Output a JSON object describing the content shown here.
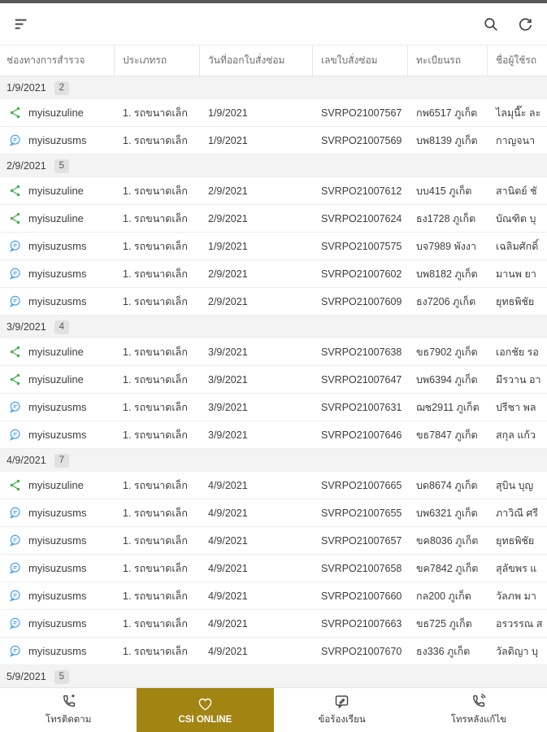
{
  "table": {
    "headers": [
      "ช่องทางการสำรวจ",
      "ประเภทรถ",
      "วันที่ออกใบสั่งซ่อม",
      "เลขใบสั่งซ่อม",
      "ทะเบียนรถ",
      "ชื่อผู้ใช้รถ"
    ],
    "groups": [
      {
        "date": "1/9/2021",
        "count": "2",
        "rows": [
          {
            "channel": "myisuzuline",
            "channel_type": "line",
            "vehicle_type": "1. รถขนาดเล็ก",
            "order_date": "1/9/2021",
            "order_no": "SVRPO21007567",
            "plate": "กพ6517 ภูเก็ต",
            "customer": "ไลมุนี๊ะ ละ"
          },
          {
            "channel": "myisuzusms",
            "channel_type": "sms",
            "vehicle_type": "1. รถขนาดเล็ก",
            "order_date": "1/9/2021",
            "order_no": "SVRPO21007569",
            "plate": "บพ8139 ภูเก็ต",
            "customer": "กาญจนา"
          }
        ]
      },
      {
        "date": "2/9/2021",
        "count": "5",
        "rows": [
          {
            "channel": "myisuzuline",
            "channel_type": "line",
            "vehicle_type": "1. รถขนาดเล็ก",
            "order_date": "2/9/2021",
            "order_no": "SVRPO21007612",
            "plate": "บบ415 ภูเก็ต",
            "customer": "สานิตย์ ชั"
          },
          {
            "channel": "myisuzuline",
            "channel_type": "line",
            "vehicle_type": "1. รถขนาดเล็ก",
            "order_date": "2/9/2021",
            "order_no": "SVRPO21007624",
            "plate": "ธง1728 ภูเก็ต",
            "customer": "บัณฑิต บุ"
          },
          {
            "channel": "myisuzusms",
            "channel_type": "sms",
            "vehicle_type": "1. รถขนาดเล็ก",
            "order_date": "1/9/2021",
            "order_no": "SVRPO21007575",
            "plate": "บจ7989 พังงา",
            "customer": "เฉลิมศักดิ์"
          },
          {
            "channel": "myisuzusms",
            "channel_type": "sms",
            "vehicle_type": "1. รถขนาดเล็ก",
            "order_date": "2/9/2021",
            "order_no": "SVRPO21007602",
            "plate": "บพ8182 ภูเก็ต",
            "customer": "มานพ ยา"
          },
          {
            "channel": "myisuzusms",
            "channel_type": "sms",
            "vehicle_type": "1. รถขนาดเล็ก",
            "order_date": "2/9/2021",
            "order_no": "SVRPO21007609",
            "plate": "ธง7206 ภูเก็ต",
            "customer": "ยุทธพิชัย"
          }
        ]
      },
      {
        "date": "3/9/2021",
        "count": "4",
        "rows": [
          {
            "channel": "myisuzuline",
            "channel_type": "line",
            "vehicle_type": "1. รถขนาดเล็ก",
            "order_date": "3/9/2021",
            "order_no": "SVRPO21007638",
            "plate": "ขธ7902 ภูเก็ต",
            "customer": "เอกชัย รอ"
          },
          {
            "channel": "myisuzuline",
            "channel_type": "line",
            "vehicle_type": "1. รถขนาดเล็ก",
            "order_date": "3/9/2021",
            "order_no": "SVRPO21007647",
            "plate": "บพ6394 ภูเก็ต",
            "customer": "มีรวาน อา"
          },
          {
            "channel": "myisuzusms",
            "channel_type": "sms",
            "vehicle_type": "1. รถขนาดเล็ก",
            "order_date": "3/9/2021",
            "order_no": "SVRPO21007631",
            "plate": "ฌช2911 ภูเก็ต",
            "customer": "ปรีชา พล"
          },
          {
            "channel": "myisuzusms",
            "channel_type": "sms",
            "vehicle_type": "1. รถขนาดเล็ก",
            "order_date": "3/9/2021",
            "order_no": "SVRPO21007646",
            "plate": "ขธ7847 ภูเก็ต",
            "customer": "สกุล แก้ว"
          }
        ]
      },
      {
        "date": "4/9/2021",
        "count": "7",
        "rows": [
          {
            "channel": "myisuzuline",
            "channel_type": "line",
            "vehicle_type": "1. รถขนาดเล็ก",
            "order_date": "4/9/2021",
            "order_no": "SVRPO21007665",
            "plate": "บด8674 ภูเก็ต",
            "customer": "สุบิน บุญ"
          },
          {
            "channel": "myisuzusms",
            "channel_type": "sms",
            "vehicle_type": "1. รถขนาดเล็ก",
            "order_date": "4/9/2021",
            "order_no": "SVRPO21007655",
            "plate": "บพ6321 ภูเก็ต",
            "customer": "ภาวิณี ศรี"
          },
          {
            "channel": "myisuzusms",
            "channel_type": "sms",
            "vehicle_type": "1. รถขนาดเล็ก",
            "order_date": "4/9/2021",
            "order_no": "SVRPO21007657",
            "plate": "ขค8036 ภูเก็ต",
            "customer": "ยุทธพิชัย"
          },
          {
            "channel": "myisuzusms",
            "channel_type": "sms",
            "vehicle_type": "1. รถขนาดเล็ก",
            "order_date": "4/9/2021",
            "order_no": "SVRPO21007658",
            "plate": "ขค7842 ภูเก็ต",
            "customer": "สุลัขพร แ"
          },
          {
            "channel": "myisuzusms",
            "channel_type": "sms",
            "vehicle_type": "1. รถขนาดเล็ก",
            "order_date": "4/9/2021",
            "order_no": "SVRPO21007660",
            "plate": "กล200 ภูเก็ต",
            "customer": "วัลภพ มา"
          },
          {
            "channel": "myisuzusms",
            "channel_type": "sms",
            "vehicle_type": "1. รถขนาดเล็ก",
            "order_date": "4/9/2021",
            "order_no": "SVRPO21007663",
            "plate": "ขธ725 ภูเก็ต",
            "customer": "อรวรรณ ส"
          },
          {
            "channel": "myisuzusms",
            "channel_type": "sms",
            "vehicle_type": "1. รถขนาดเล็ก",
            "order_date": "4/9/2021",
            "order_no": "SVRPO21007670",
            "plate": "ธง336 ภูเก็ต",
            "customer": "วัลดิญา บุ"
          }
        ]
      },
      {
        "date": "5/9/2021",
        "count": "5",
        "rows": []
      }
    ]
  },
  "tabbar": {
    "tabs": [
      {
        "label": "โทรติดตาม",
        "icon": "add-call-icon",
        "active": false
      },
      {
        "label": "CSI ONLINE",
        "icon": "heart-icon",
        "active": true
      },
      {
        "label": "ข้อร้องเรียน",
        "icon": "complaint-bubble-icon",
        "active": false
      },
      {
        "label": "โทรหลังแก้ไข",
        "icon": "call-waves-icon",
        "active": false
      }
    ]
  },
  "colors": {
    "accent_gold": "#a28413",
    "line_green": "#43b049",
    "sms_blue": "#3d9cf5"
  }
}
